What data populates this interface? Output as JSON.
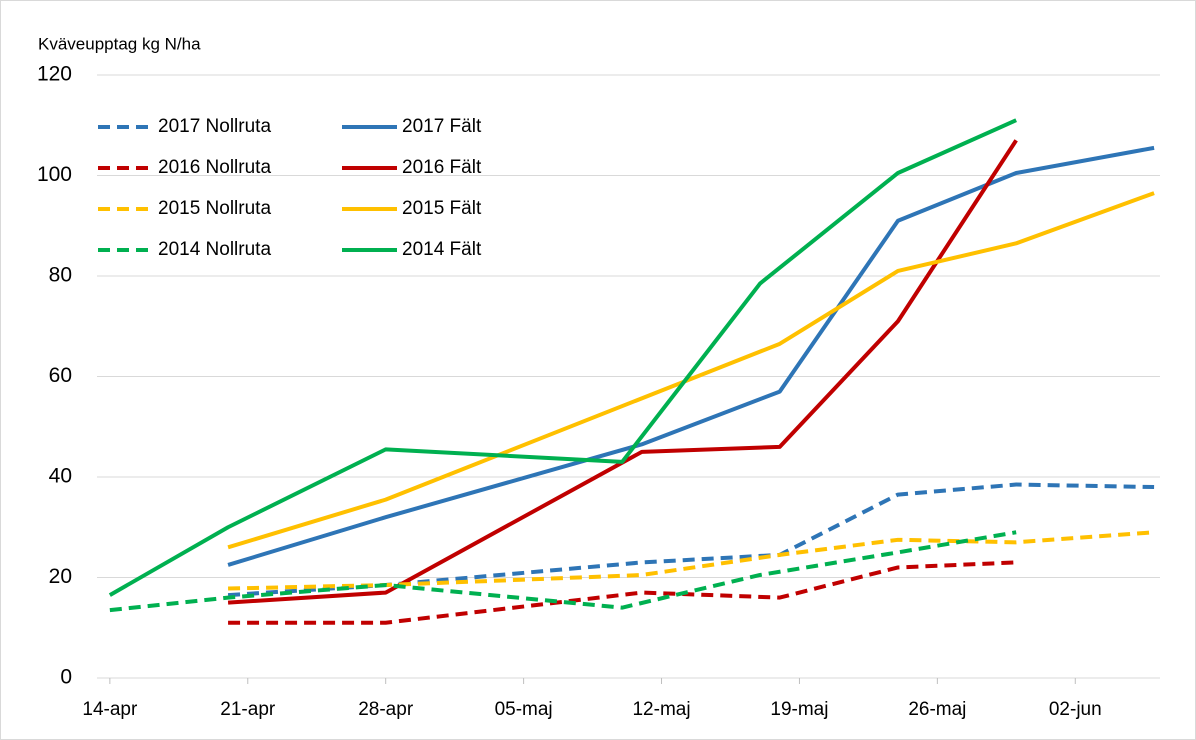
{
  "chart_data": {
    "type": "line",
    "y_label": "Kväveupptag kg N/ha",
    "ylim": [
      0,
      120
    ],
    "yticks": [
      0,
      20,
      40,
      60,
      80,
      100,
      120
    ],
    "xlim": [
      103.5,
      157.3
    ],
    "xticks": [
      {
        "value": 104,
        "label": "14-apr"
      },
      {
        "value": 111,
        "label": "21-apr"
      },
      {
        "value": 118,
        "label": "28-apr"
      },
      {
        "value": 125,
        "label": "05-maj"
      },
      {
        "value": 132,
        "label": "12-maj"
      },
      {
        "value": 139,
        "label": "19-maj"
      },
      {
        "value": 146,
        "label": "26-maj"
      },
      {
        "value": 153,
        "label": "02-jun"
      }
    ],
    "grid": true,
    "legend": "upper left",
    "series": [
      {
        "name": "2017 Nollruta",
        "color": "#2e75b6",
        "style": "dashed",
        "x": [
          110,
          118,
          131,
          138,
          144,
          150,
          157
        ],
        "values": [
          16.5,
          18.5,
          23,
          24.5,
          36.5,
          38.5,
          38
        ]
      },
      {
        "name": "2017 Fält",
        "color": "#2e75b6",
        "style": "solid",
        "x": [
          110,
          118,
          131,
          138,
          144,
          150,
          157
        ],
        "values": [
          22.5,
          32,
          46.5,
          57,
          91,
          100.5,
          105.5
        ]
      },
      {
        "name": "2016 Nollruta",
        "color": "#c00000",
        "style": "dashed",
        "x": [
          110,
          118,
          131,
          138,
          144,
          150
        ],
        "values": [
          11,
          11,
          17,
          16,
          22,
          23
        ]
      },
      {
        "name": "2016 Fält",
        "color": "#c00000",
        "style": "solid",
        "x": [
          110,
          118,
          131,
          138,
          144,
          150
        ],
        "values": [
          15,
          17,
          45,
          46,
          71,
          107
        ]
      },
      {
        "name": "2015 Nollruta",
        "color": "#ffc000",
        "style": "dashed",
        "x": [
          110,
          118,
          131,
          138,
          144,
          150,
          157
        ],
        "values": [
          17.8,
          18.5,
          20.5,
          24.5,
          27.5,
          27,
          29
        ]
      },
      {
        "name": "2015 Fält",
        "color": "#ffc000",
        "style": "solid",
        "x": [
          110,
          118,
          138,
          144,
          150,
          157
        ],
        "values": [
          26,
          35.5,
          66.5,
          81,
          86.5,
          96.5
        ]
      },
      {
        "name": "2014 Nollruta",
        "color": "#00b050",
        "style": "dashed",
        "x": [
          104,
          110,
          118,
          130,
          137,
          144,
          150
        ],
        "values": [
          13.5,
          16,
          18.5,
          14,
          20.5,
          25,
          29
        ]
      },
      {
        "name": "2014 Fält",
        "color": "#00b050",
        "style": "solid",
        "x": [
          104,
          110,
          118,
          130,
          137,
          144,
          150
        ],
        "values": [
          16.5,
          30,
          45.5,
          43,
          78.5,
          100.5,
          111
        ]
      }
    ]
  }
}
